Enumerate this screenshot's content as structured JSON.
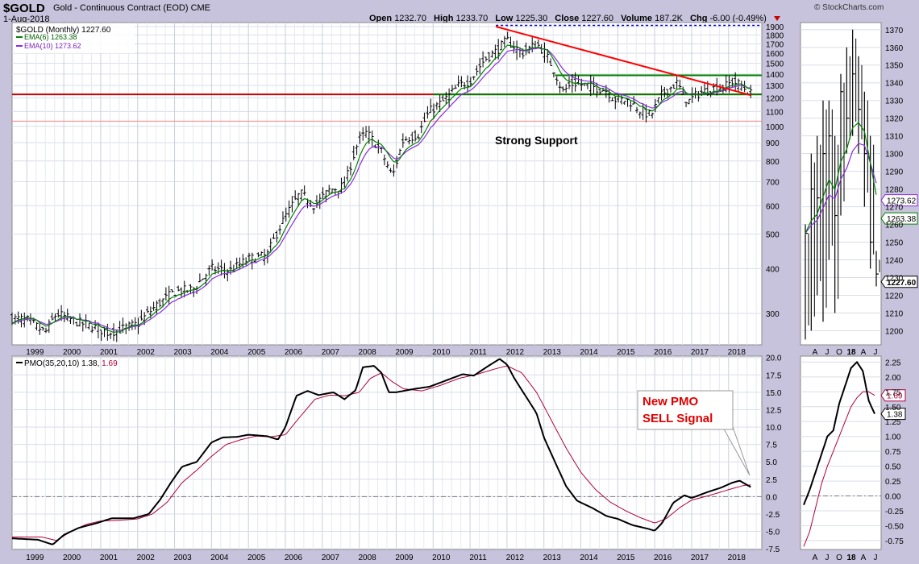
{
  "header": {
    "symbol": "$GOLD",
    "description": "Gold - Continuous Contract (EOD)",
    "exchange": "CME",
    "date": "1-Aug-2018",
    "open_label": "Open",
    "open": "1232.70",
    "high_label": "High",
    "high": "1233.70",
    "low_label": "Low",
    "low": "1225.30",
    "close_label": "Close",
    "close": "1227.60",
    "volume_label": "Volume",
    "volume": "187.2K",
    "chg_label": "Chg",
    "chg": "-6.00 (-0.49%)",
    "copyright": "© StockCharts.com"
  },
  "chart_data": [
    {
      "type": "ohlc",
      "panel": "price-monthly",
      "scale": "log",
      "legend": {
        "line1": "$GOLD (Monthly) 1227.60",
        "line2": "EMA(6) 1263.38",
        "line3": "EMA(10) 1273.62"
      },
      "colors": {
        "ema6": "#008000",
        "ema10": "#8a2be2",
        "bars": "#000000",
        "trendline": "#ff0000",
        "support": "#008000",
        "highline": "#0000cc"
      },
      "ytick_labels": [
        "1900",
        "1800",
        "1700",
        "1600",
        "1500",
        "1400",
        "1300",
        "1200",
        "1100",
        "1000",
        "900",
        "800",
        "700",
        "600",
        "500",
        "400",
        "300"
      ],
      "ytick_values": [
        1900,
        1800,
        1700,
        1600,
        1500,
        1400,
        1300,
        1200,
        1100,
        1000,
        900,
        800,
        700,
        600,
        500,
        400,
        300
      ],
      "ylim": [
        245,
        1950
      ],
      "x_labels": [
        "1999",
        "2000",
        "2001",
        "2002",
        "2003",
        "2004",
        "2005",
        "2006",
        "2007",
        "2008",
        "2009",
        "2010",
        "2011",
        "2012",
        "2013",
        "2014",
        "2015",
        "2016",
        "2017",
        "2018"
      ],
      "x_years": [
        1999,
        2000,
        2001,
        2002,
        2003,
        2004,
        2005,
        2006,
        2007,
        2008,
        2009,
        2010,
        2011,
        2012,
        2013,
        2014,
        2015,
        2016,
        2017,
        2018
      ],
      "xlim": [
        1998.6,
        2018.9
      ],
      "close_anchors": [
        [
          1998.6,
          290
        ],
        [
          1999.0,
          288
        ],
        [
          1999.5,
          265
        ],
        [
          1999.8,
          300
        ],
        [
          2000.3,
          285
        ],
        [
          2000.8,
          275
        ],
        [
          2001.2,
          265
        ],
        [
          2001.6,
          272
        ],
        [
          2002.0,
          280
        ],
        [
          2002.5,
          315
        ],
        [
          2003.0,
          345
        ],
        [
          2003.5,
          350
        ],
        [
          2004.0,
          400
        ],
        [
          2004.5,
          395
        ],
        [
          2005.0,
          425
        ],
        [
          2005.5,
          435
        ],
        [
          2006.0,
          560
        ],
        [
          2006.4,
          650
        ],
        [
          2006.8,
          600
        ],
        [
          2007.2,
          665
        ],
        [
          2007.6,
          680
        ],
        [
          2008.0,
          920
        ],
        [
          2008.2,
          960
        ],
        [
          2008.6,
          850
        ],
        [
          2008.9,
          720
        ],
        [
          2009.2,
          920
        ],
        [
          2009.6,
          950
        ],
        [
          2009.9,
          1100
        ],
        [
          2010.3,
          1180
        ],
        [
          2010.7,
          1300
        ],
        [
          2011.0,
          1340
        ],
        [
          2011.4,
          1540
        ],
        [
          2011.7,
          1620
        ],
        [
          2012.0,
          1740
        ],
        [
          2012.4,
          1600
        ],
        [
          2012.8,
          1700
        ],
        [
          2013.0,
          1620
        ],
        [
          2013.3,
          1420
        ],
        [
          2013.5,
          1250
        ],
        [
          2013.8,
          1320
        ],
        [
          2014.2,
          1300
        ],
        [
          2014.7,
          1260
        ],
        [
          2014.9,
          1190
        ],
        [
          2015.3,
          1180
        ],
        [
          2015.6,
          1110
        ],
        [
          2015.9,
          1070
        ],
        [
          2016.2,
          1230
        ],
        [
          2016.6,
          1320
        ],
        [
          2016.9,
          1170
        ],
        [
          2017.2,
          1240
        ],
        [
          2017.6,
          1280
        ],
        [
          2017.9,
          1290
        ],
        [
          2018.1,
          1335
        ],
        [
          2018.35,
          1300
        ],
        [
          2018.6,
          1233
        ]
      ],
      "annotation": "Strong Support",
      "lines": {
        "trend_from": [
          2011.7,
          1900
        ],
        "trend_to": [
          2018.6,
          1222
        ],
        "red_horizontal": 1228,
        "pink_horizontal": 1034,
        "support_lower": 1228,
        "support_upper": 1388,
        "support_upper_from": 2013.3,
        "dash_top": 1915
      }
    },
    {
      "type": "ohlc",
      "panel": "price-daily-inset",
      "ytick_labels": [
        "1370",
        "1360",
        "1350",
        "1340",
        "1330",
        "1320",
        "1310",
        "1300",
        "1290",
        "1280",
        "1270",
        "1260",
        "1250",
        "1240",
        "1230",
        "1220",
        "1210",
        "1200"
      ],
      "ytick_values": [
        1370,
        1360,
        1350,
        1340,
        1330,
        1320,
        1310,
        1300,
        1290,
        1280,
        1270,
        1260,
        1250,
        1240,
        1230,
        1220,
        1210,
        1200
      ],
      "ylim": [
        1192,
        1374
      ],
      "x_labels": [
        "A",
        "J",
        "O",
        "18",
        "A",
        "J"
      ],
      "badges": {
        "ema10": "1273.62",
        "ema6": "1263.38",
        "close": "1227.60"
      },
      "bar_anchors": [
        [
          0,
          1260,
          1195,
          1255
        ],
        [
          1,
          1300,
          1200,
          1280
        ],
        [
          2,
          1310,
          1220,
          1275
        ],
        [
          3,
          1330,
          1205,
          1300
        ],
        [
          4,
          1330,
          1240,
          1310
        ],
        [
          5,
          1310,
          1210,
          1265
        ],
        [
          6,
          1345,
          1265,
          1335
        ],
        [
          7,
          1360,
          1300,
          1320
        ],
        [
          8,
          1370,
          1310,
          1345
        ],
        [
          9,
          1355,
          1300,
          1325
        ],
        [
          10,
          1335,
          1270,
          1300
        ],
        [
          11,
          1310,
          1235,
          1250
        ],
        [
          12,
          1245,
          1225,
          1232
        ]
      ]
    },
    {
      "type": "line",
      "panel": "pmo-monthly",
      "legend": "PMO(35,20,10) 1.38, 1.69",
      "legend_parts": {
        "label": "PMO(35,20,10) 1.38,",
        "signal": "1.69"
      },
      "colors": {
        "pmo": "#000000",
        "signal": "#b0003a"
      },
      "ytick_labels": [
        "20.0",
        "17.5",
        "15.0",
        "12.5",
        "10.0",
        "7.5",
        "5.0",
        "2.5",
        "0.0",
        "-2.5",
        "-5.0",
        "-7.5"
      ],
      "ytick_values": [
        20,
        17.5,
        15,
        12.5,
        10,
        7.5,
        5,
        2.5,
        0,
        -2.5,
        -5,
        -7.5
      ],
      "ylim": [
        -7.6,
        20.2
      ],
      "annotation_line1": "New PMO",
      "annotation_line2": "SELL Signal",
      "pmo_anchors": [
        [
          1998.6,
          -6
        ],
        [
          1999.3,
          -6.2
        ],
        [
          1999.7,
          -6.9
        ],
        [
          2000.0,
          -5.5
        ],
        [
          2000.4,
          -4.5
        ],
        [
          2000.9,
          -3.8
        ],
        [
          2001.3,
          -3.1
        ],
        [
          2001.9,
          -3.1
        ],
        [
          2002.3,
          -2.5
        ],
        [
          2002.6,
          -0.5
        ],
        [
          2002.9,
          2
        ],
        [
          2003.2,
          4.3
        ],
        [
          2003.6,
          5
        ],
        [
          2004.0,
          7.8
        ],
        [
          2004.3,
          8.5
        ],
        [
          2004.7,
          8.6
        ],
        [
          2005.0,
          8.9
        ],
        [
          2005.5,
          8.7
        ],
        [
          2005.8,
          8.2
        ],
        [
          2006.0,
          10
        ],
        [
          2006.3,
          14.5
        ],
        [
          2006.6,
          15.2
        ],
        [
          2006.9,
          14.6
        ],
        [
          2007.3,
          15
        ],
        [
          2007.6,
          14
        ],
        [
          2007.9,
          15.3
        ],
        [
          2008.1,
          18.6
        ],
        [
          2008.4,
          18.8
        ],
        [
          2008.6,
          17.8
        ],
        [
          2008.8,
          15
        ],
        [
          2009.0,
          15
        ],
        [
          2009.5,
          15.5
        ],
        [
          2009.9,
          15.8
        ],
        [
          2010.3,
          16.6
        ],
        [
          2010.8,
          17.6
        ],
        [
          2011.1,
          17.4
        ],
        [
          2011.5,
          18.8
        ],
        [
          2011.8,
          19.8
        ],
        [
          2012.0,
          19
        ],
        [
          2012.2,
          17
        ],
        [
          2012.5,
          14.5
        ],
        [
          2012.8,
          12
        ],
        [
          2013.0,
          8.5
        ],
        [
          2013.3,
          5
        ],
        [
          2013.6,
          1.5
        ],
        [
          2013.9,
          -0.6
        ],
        [
          2014.3,
          -1.6
        ],
        [
          2014.7,
          -2.8
        ],
        [
          2015.0,
          -3.2
        ],
        [
          2015.4,
          -4.1
        ],
        [
          2015.8,
          -4.6
        ],
        [
          2016.0,
          -4.9
        ],
        [
          2016.2,
          -3.8
        ],
        [
          2016.5,
          -0.9
        ],
        [
          2016.8,
          0.2
        ],
        [
          2017.0,
          -0.2
        ],
        [
          2017.4,
          0.6
        ],
        [
          2017.8,
          1.3
        ],
        [
          2018.1,
          2
        ],
        [
          2018.3,
          2.3
        ],
        [
          2018.6,
          1.38
        ]
      ],
      "signal_anchors": [
        [
          1998.6,
          -5.8
        ],
        [
          1999.4,
          -5.8
        ],
        [
          1999.8,
          -6.3
        ],
        [
          2000.2,
          -5
        ],
        [
          2000.6,
          -4
        ],
        [
          2001.0,
          -3.5
        ],
        [
          2001.5,
          -3.4
        ],
        [
          2002.0,
          -3.2
        ],
        [
          2002.4,
          -2.5
        ],
        [
          2002.8,
          -0.8
        ],
        [
          2003.2,
          2
        ],
        [
          2003.6,
          3.8
        ],
        [
          2004.0,
          5.8
        ],
        [
          2004.4,
          7.5
        ],
        [
          2004.8,
          8.2
        ],
        [
          2005.2,
          8.7
        ],
        [
          2005.6,
          8.6
        ],
        [
          2006.0,
          8.9
        ],
        [
          2006.4,
          11.5
        ],
        [
          2006.8,
          14
        ],
        [
          2007.2,
          14.6
        ],
        [
          2007.6,
          14.5
        ],
        [
          2008.0,
          15
        ],
        [
          2008.3,
          17
        ],
        [
          2008.6,
          17.8
        ],
        [
          2008.9,
          16.5
        ],
        [
          2009.2,
          15.5
        ],
        [
          2009.7,
          15.2
        ],
        [
          2010.2,
          16
        ],
        [
          2010.7,
          17
        ],
        [
          2011.2,
          17.6
        ],
        [
          2011.7,
          18.4
        ],
        [
          2012.0,
          18.8
        ],
        [
          2012.4,
          17.8
        ],
        [
          2012.8,
          15
        ],
        [
          2013.2,
          11
        ],
        [
          2013.6,
          7
        ],
        [
          2014.0,
          3.5
        ],
        [
          2014.4,
          1
        ],
        [
          2014.8,
          -0.8
        ],
        [
          2015.2,
          -2
        ],
        [
          2015.6,
          -3
        ],
        [
          2016.0,
          -3.8
        ],
        [
          2016.3,
          -3.2
        ],
        [
          2016.7,
          -1.5
        ],
        [
          2017.0,
          -0.5
        ],
        [
          2017.5,
          0.2
        ],
        [
          2018.0,
          1
        ],
        [
          2018.4,
          1.6
        ],
        [
          2018.6,
          1.69
        ]
      ]
    },
    {
      "type": "line",
      "panel": "pmo-daily-inset",
      "ytick_labels": [
        "2.25",
        "2.00",
        "1.75",
        "1.50",
        "1.25",
        "1.00",
        "0.75",
        "0.50",
        "0.25",
        "0.00",
        "-0.25",
        "-0.50",
        "-0.75"
      ],
      "ytick_values": [
        2.25,
        2.0,
        1.75,
        1.5,
        1.25,
        1.0,
        0.75,
        0.5,
        0.25,
        0.0,
        -0.25,
        -0.5,
        -0.75
      ],
      "ylim": [
        -0.9,
        2.35
      ],
      "x_labels": [
        "A",
        "J",
        "O",
        "18",
        "A",
        "J"
      ],
      "badges": {
        "signal": "1.69",
        "pmo": "1.38"
      },
      "pmo_anchors": [
        [
          0,
          -0.15
        ],
        [
          1,
          0.1
        ],
        [
          2,
          0.4
        ],
        [
          3,
          0.7
        ],
        [
          4,
          1.0
        ],
        [
          5,
          1.1
        ],
        [
          6,
          1.55
        ],
        [
          7,
          1.85
        ],
        [
          8,
          2.15
        ],
        [
          9,
          2.25
        ],
        [
          10,
          2.1
        ],
        [
          11,
          1.6
        ],
        [
          12,
          1.38
        ]
      ],
      "signal_anchors": [
        [
          0,
          -0.85
        ],
        [
          1,
          -0.6
        ],
        [
          2,
          -0.2
        ],
        [
          3,
          0.2
        ],
        [
          4,
          0.5
        ],
        [
          5,
          0.75
        ],
        [
          6,
          1.0
        ],
        [
          7,
          1.25
        ],
        [
          8,
          1.5
        ],
        [
          9,
          1.65
        ],
        [
          10,
          1.75
        ],
        [
          11,
          1.75
        ],
        [
          12,
          1.69
        ]
      ]
    }
  ]
}
